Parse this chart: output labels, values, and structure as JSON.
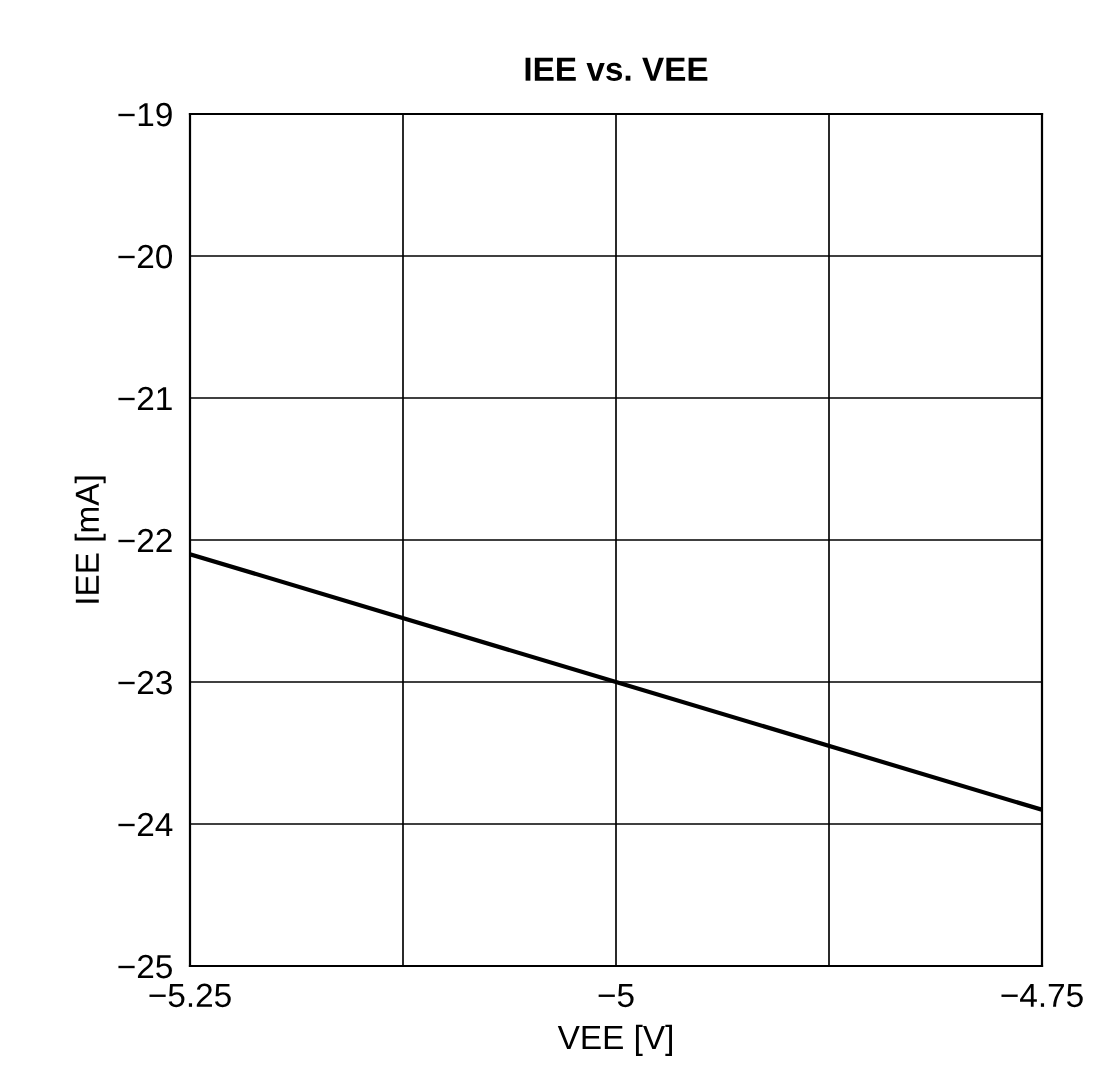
{
  "chart_data": {
    "type": "line",
    "title": "IEE vs. VEE",
    "xlabel": "VEE [V]",
    "ylabel": "IEE [mA]",
    "x": [
      -5.25,
      -5.0,
      -4.75
    ],
    "series": [
      {
        "color": "#000000",
        "values": [
          -22.1,
          -23.0,
          -23.9
        ]
      }
    ],
    "xlim": [
      -5.25,
      -4.75
    ],
    "xticks": [
      {
        "value": -5.25,
        "label": "−5.25"
      },
      {
        "value": -5.125,
        "label": null
      },
      {
        "value": -5.0,
        "label": "−5"
      },
      {
        "value": -4.875,
        "label": null
      },
      {
        "value": -4.75,
        "label": "−4.75"
      }
    ],
    "ylim": [
      -25,
      -19
    ],
    "yticks": [
      {
        "value": -25,
        "label": "−25"
      },
      {
        "value": -24,
        "label": "−24"
      },
      {
        "value": -23,
        "label": "−23"
      },
      {
        "value": -22,
        "label": "−22"
      },
      {
        "value": -21,
        "label": "−21"
      },
      {
        "value": -20,
        "label": "−20"
      },
      {
        "value": -19,
        "label": "−19"
      }
    ],
    "grid": true,
    "marker": "none",
    "line_style": "solid",
    "legend": false
  }
}
